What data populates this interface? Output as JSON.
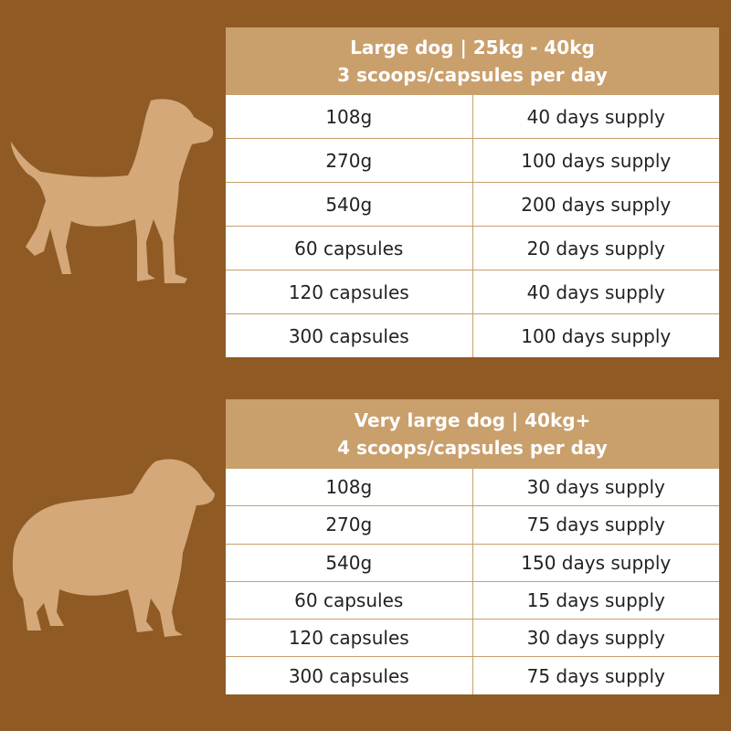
{
  "tables": [
    {
      "title": "Large dog | 25kg - 40kg",
      "subtitle": "3 scoops/capsules per day",
      "rows": [
        [
          "108g",
          "40 days supply"
        ],
        [
          "270g",
          "100 days supply"
        ],
        [
          "540g",
          "200 days supply"
        ],
        [
          "60 capsules",
          "20 days supply"
        ],
        [
          "120 capsules",
          "40 days supply"
        ],
        [
          "300 capsules",
          "100 days supply"
        ]
      ]
    },
    {
      "title": "Very large dog | 40kg+",
      "subtitle": "4 scoops/capsules per day",
      "rows": [
        [
          "108g",
          "30 days supply"
        ],
        [
          "270g",
          "75 days supply"
        ],
        [
          "540g",
          "150 days supply"
        ],
        [
          "60 capsules",
          "15 days supply"
        ],
        [
          "120 capsules",
          "30 days supply"
        ],
        [
          "300 capsules",
          "75 days supply"
        ]
      ]
    }
  ]
}
